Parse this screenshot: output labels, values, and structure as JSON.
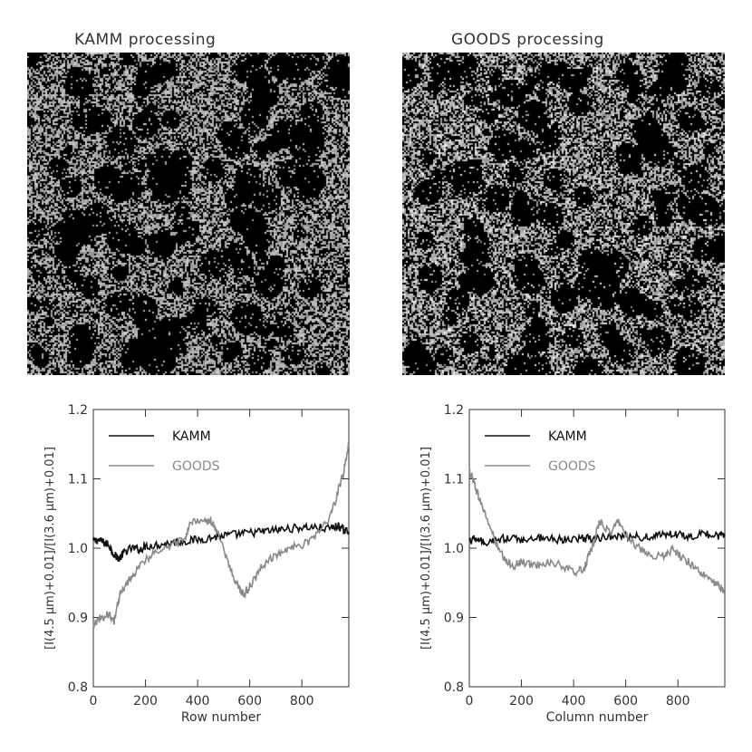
{
  "images": {
    "left_title": "KAMM processing",
    "right_title": "GOODS processing"
  },
  "chart_data": [
    {
      "type": "line",
      "title": "",
      "xlabel": "Row number",
      "ylabel": "[I(4.5 μm)+0.01]/[I(3.6 μm)+0.01]",
      "xlim": [
        0,
        980
      ],
      "ylim": [
        0.8,
        1.2
      ],
      "xticks": [
        0,
        200,
        400,
        600,
        800
      ],
      "yticks": [
        0.8,
        0.9,
        1.0,
        1.1,
        1.2
      ],
      "xtick_labels": [
        "0",
        "200",
        "400",
        "600",
        "800"
      ],
      "ytick_labels": [
        "0.8",
        "0.9",
        "1.0",
        "1.1",
        "1.2"
      ],
      "legend_position": "top-left",
      "grid": false,
      "series": [
        {
          "name": "KAMM",
          "color": "#111111",
          "x": [
            0,
            20,
            40,
            60,
            80,
            100,
            120,
            150,
            180,
            200,
            250,
            300,
            350,
            400,
            450,
            500,
            550,
            600,
            650,
            700,
            750,
            800,
            850,
            900,
            940,
            960,
            980
          ],
          "y": [
            1.01,
            1.012,
            1.008,
            1.005,
            0.99,
            0.985,
            0.995,
            1.0,
            0.998,
            1.003,
            1.005,
            1.008,
            1.01,
            1.012,
            1.015,
            1.018,
            1.02,
            1.022,
            1.024,
            1.026,
            1.028,
            1.03,
            1.03,
            1.028,
            1.032,
            1.026,
            1.024
          ]
        },
        {
          "name": "GOODS",
          "color": "#8a8a8a",
          "x": [
            0,
            30,
            60,
            80,
            100,
            130,
            160,
            200,
            250,
            300,
            350,
            380,
            420,
            450,
            480,
            520,
            560,
            580,
            610,
            650,
            700,
            750,
            800,
            850,
            900,
            930,
            960,
            980
          ],
          "y": [
            0.89,
            0.9,
            0.905,
            0.895,
            0.93,
            0.95,
            0.965,
            0.985,
            0.995,
            1.005,
            1.015,
            1.04,
            1.035,
            1.04,
            1.02,
            0.975,
            0.94,
            0.935,
            0.95,
            0.975,
            0.99,
            1.0,
            1.005,
            1.015,
            1.04,
            1.07,
            1.11,
            1.15
          ]
        }
      ]
    },
    {
      "type": "line",
      "title": "",
      "xlabel": "Column number",
      "ylabel": "[I(4.5 μm)+0.01]/[I(3.6 μm)+0.01]",
      "xlim": [
        0,
        980
      ],
      "ylim": [
        0.8,
        1.2
      ],
      "xticks": [
        0,
        200,
        400,
        600,
        800
      ],
      "yticks": [
        0.8,
        0.9,
        1.0,
        1.1,
        1.2
      ],
      "xtick_labels": [
        "0",
        "200",
        "400",
        "600",
        "800"
      ],
      "ytick_labels": [
        "0.8",
        "0.9",
        "1.0",
        "1.1",
        "1.2"
      ],
      "legend_position": "top-left",
      "grid": false,
      "series": [
        {
          "name": "KAMM",
          "color": "#111111",
          "x": [
            0,
            30,
            60,
            100,
            150,
            200,
            250,
            300,
            350,
            400,
            450,
            500,
            550,
            600,
            650,
            700,
            750,
            800,
            850,
            900,
            950,
            980
          ],
          "y": [
            1.01,
            1.015,
            1.005,
            1.012,
            1.015,
            1.012,
            1.016,
            1.014,
            1.012,
            1.015,
            1.014,
            1.016,
            1.018,
            1.017,
            1.016,
            1.018,
            1.02,
            1.019,
            1.018,
            1.02,
            1.018,
            1.017
          ]
        },
        {
          "name": "GOODS",
          "color": "#8a8a8a",
          "x": [
            0,
            15,
            30,
            50,
            80,
            110,
            140,
            170,
            200,
            250,
            300,
            350,
            400,
            440,
            470,
            500,
            540,
            570,
            600,
            650,
            700,
            750,
            780,
            820,
            860,
            900,
            940,
            960,
            980
          ],
          "y": [
            1.11,
            1.1,
            1.08,
            1.06,
            1.03,
            1.0,
            0.98,
            0.975,
            0.98,
            0.975,
            0.98,
            0.975,
            0.965,
            0.97,
            1.0,
            1.04,
            1.02,
            1.04,
            1.02,
            1.0,
            0.985,
            0.99,
            0.998,
            0.985,
            0.975,
            0.96,
            0.95,
            0.945,
            0.935
          ]
        }
      ]
    }
  ]
}
